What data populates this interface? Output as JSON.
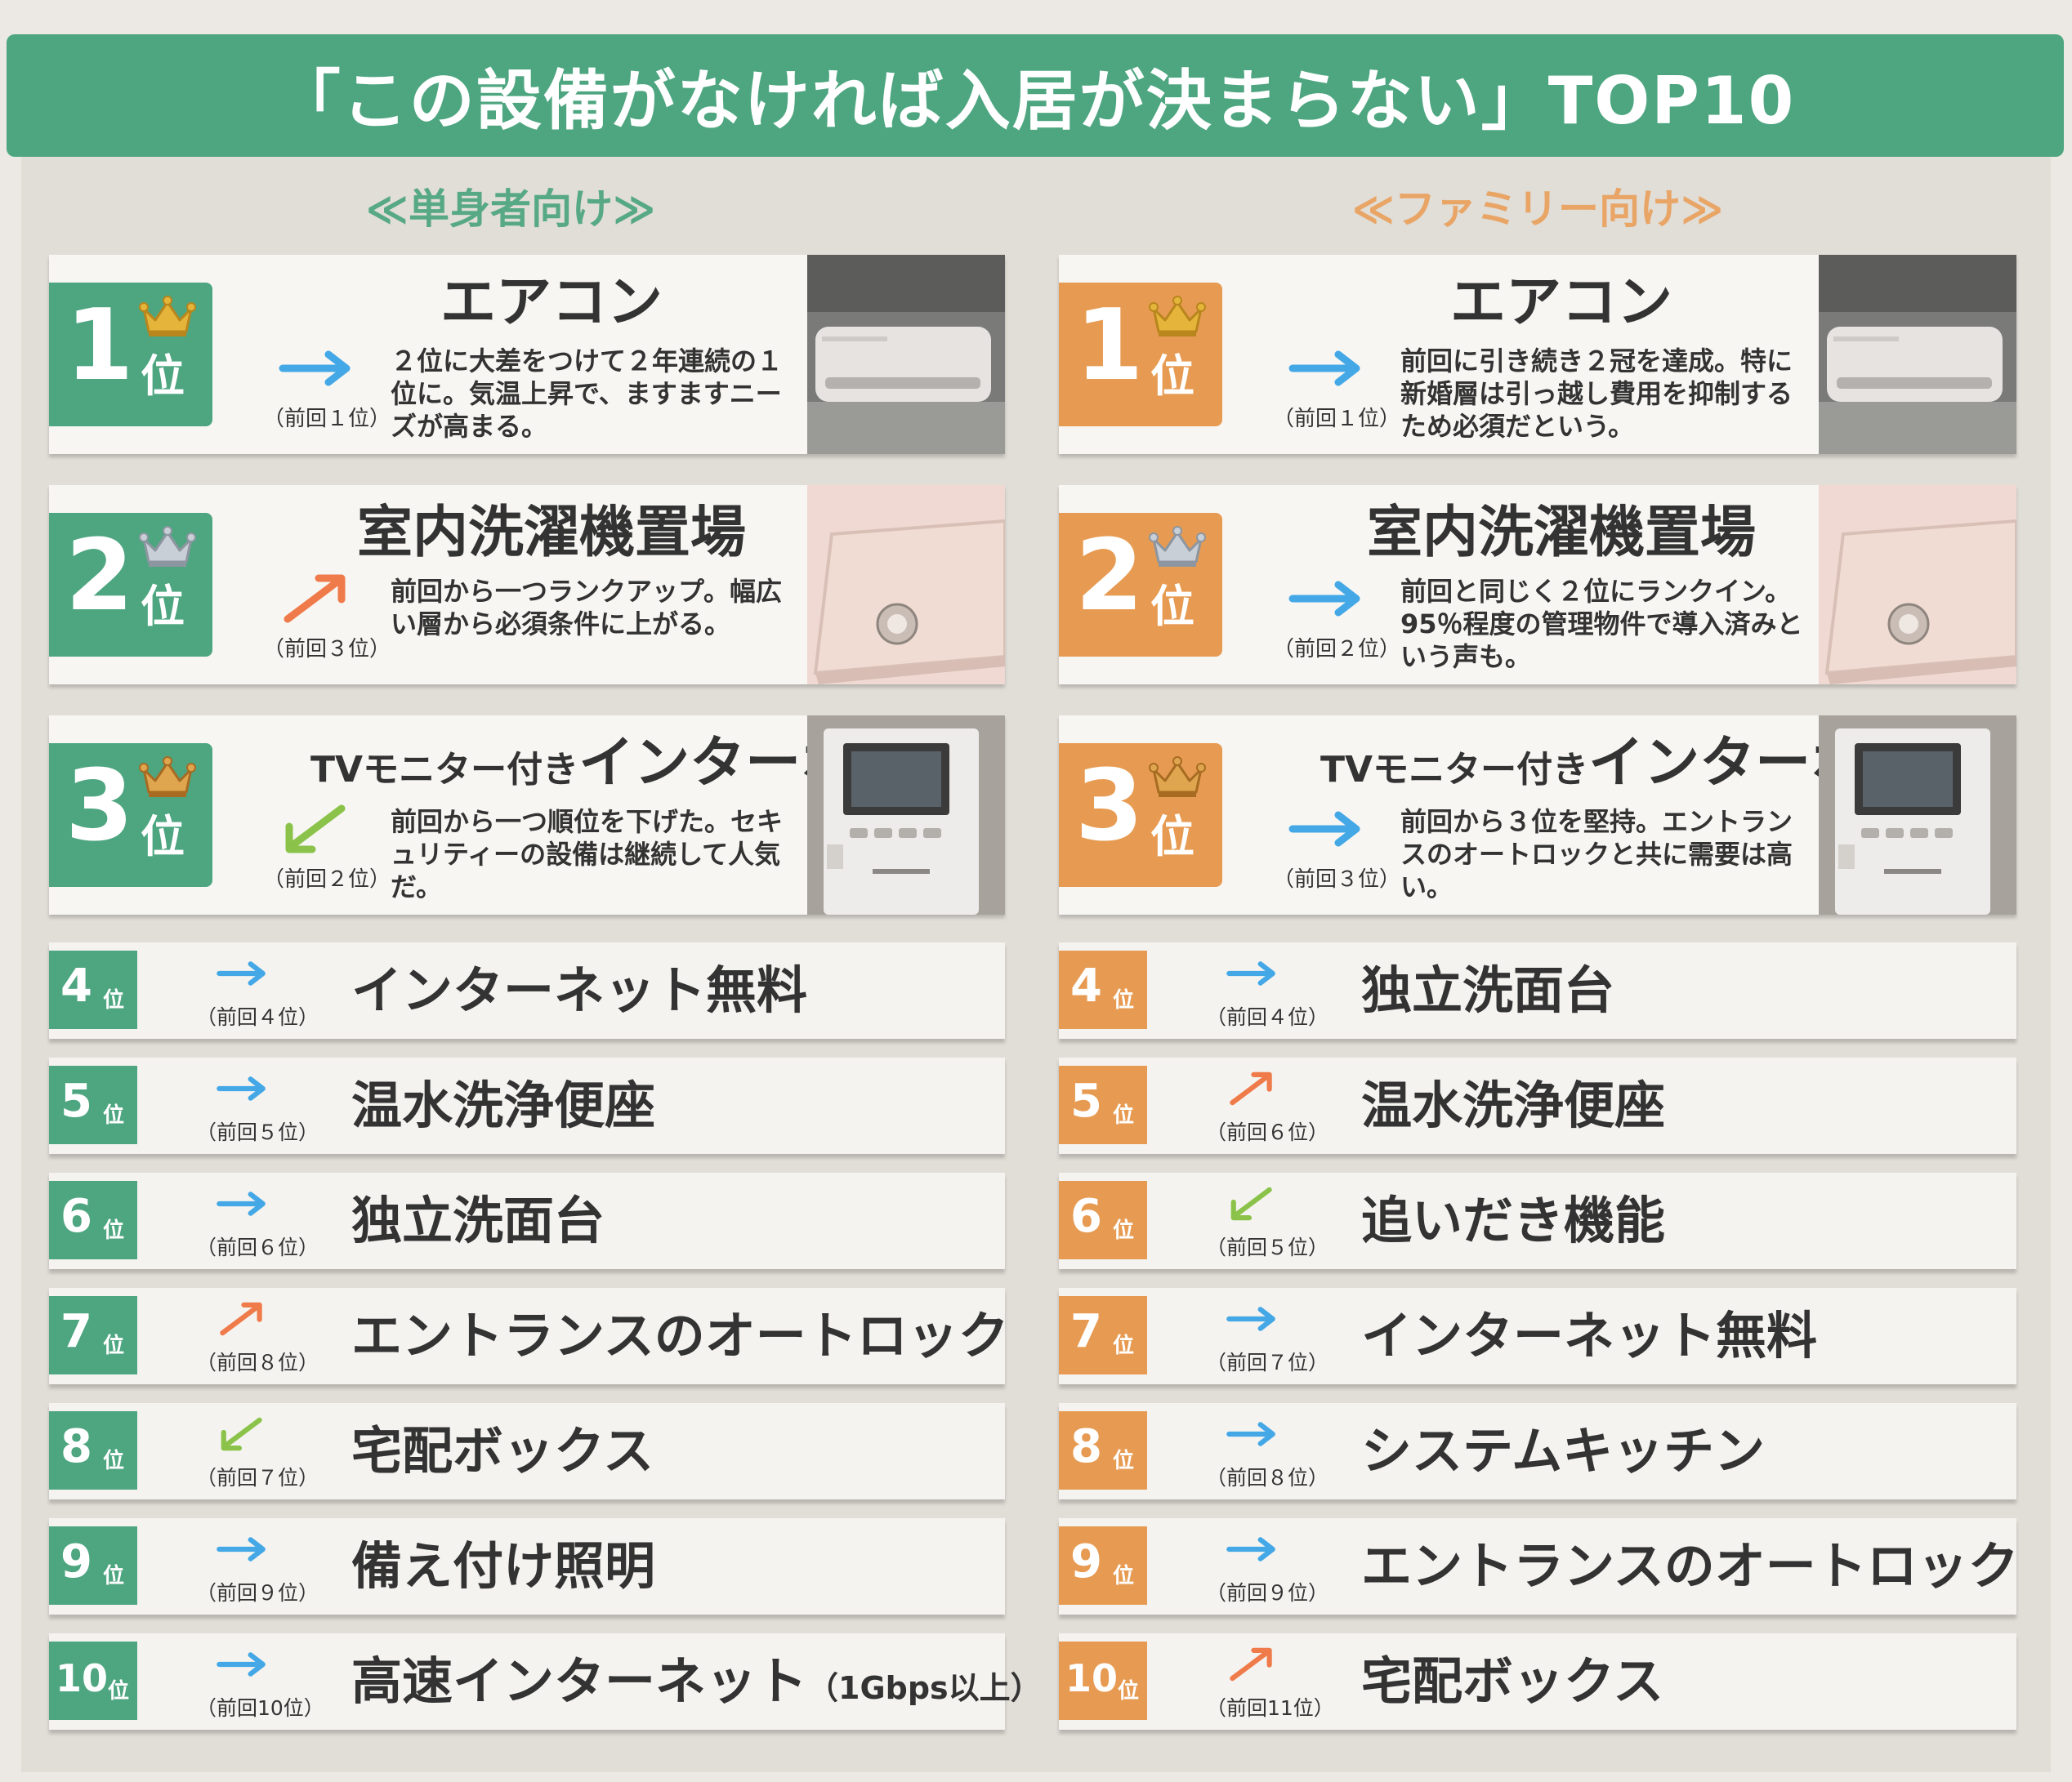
{
  "title": "「この設備がなければ入居が決まらない」TOP10",
  "rank_unit": "位",
  "colors": {
    "green": "#4ea681",
    "orange": "#e79b52",
    "up": "#f07b4a",
    "down": "#8bc34a",
    "same": "#45a8e6"
  },
  "columns": [
    {
      "heading": "≪単身者向け≫",
      "theme": "green",
      "top3": [
        {
          "rank": "1",
          "crown": "gold",
          "trend": "same",
          "prev": "（前回１位）",
          "name": "エアコン",
          "name_prefix": "",
          "desc": "２位に大差をつけて２年連続の１位に。気温上昇で、ますますニーズが高まる。",
          "photo": "air-conditioner"
        },
        {
          "rank": "2",
          "crown": "silver",
          "trend": "up",
          "prev": "（前回３位）",
          "name": "室内洗濯機置場",
          "name_prefix": "",
          "desc": "前回から一つランクアップ。幅広い層から必須条件に上がる。",
          "photo": "washing-machine-pan"
        },
        {
          "rank": "3",
          "crown": "bronze",
          "trend": "down",
          "prev": "（前回２位）",
          "name": "インターホン",
          "name_prefix": "TVモニター付き",
          "desc": "前回から一つ順位を下げた。セキュリティーの設備は継続して人気だ。",
          "photo": "video-intercom"
        }
      ],
      "rows": [
        {
          "rank": "4",
          "trend": "same",
          "prev": "（前回４位）",
          "name": "インターネット無料",
          "note": ""
        },
        {
          "rank": "5",
          "trend": "same",
          "prev": "（前回５位）",
          "name": "温水洗浄便座",
          "note": ""
        },
        {
          "rank": "6",
          "trend": "same",
          "prev": "（前回６位）",
          "name": "独立洗面台",
          "note": ""
        },
        {
          "rank": "7",
          "trend": "up",
          "prev": "（前回８位）",
          "name": "エントランスのオートロック",
          "note": ""
        },
        {
          "rank": "8",
          "trend": "down",
          "prev": "（前回７位）",
          "name": "宅配ボックス",
          "note": ""
        },
        {
          "rank": "9",
          "trend": "same",
          "prev": "（前回９位）",
          "name": "備え付け照明",
          "note": ""
        },
        {
          "rank": "10",
          "trend": "same",
          "prev": "（前回10位）",
          "name": "高速インターネット",
          "note": "（1Gbps以上）"
        }
      ]
    },
    {
      "heading": "≪ファミリー向け≫",
      "theme": "orange",
      "top3": [
        {
          "rank": "1",
          "crown": "gold",
          "trend": "same",
          "prev": "（前回１位）",
          "name": "エアコン",
          "name_prefix": "",
          "desc": "前回に引き続き２冠を達成。特に新婚層は引っ越し費用を抑制するため必須だという。",
          "photo": "air-conditioner"
        },
        {
          "rank": "2",
          "crown": "silver",
          "trend": "same",
          "prev": "（前回２位）",
          "name": "室内洗濯機置場",
          "name_prefix": "",
          "desc": "前回と同じく２位にランクイン。95％程度の管理物件で導入済みという声も。",
          "photo": "washing-machine-pan"
        },
        {
          "rank": "3",
          "crown": "bronze",
          "trend": "same",
          "prev": "（前回３位）",
          "name": "インターホン",
          "name_prefix": "TVモニター付き",
          "desc": "前回から３位を堅持。エントランスのオートロックと共に需要は高い。",
          "photo": "video-intercom"
        }
      ],
      "rows": [
        {
          "rank": "4",
          "trend": "same",
          "prev": "（前回４位）",
          "name": "独立洗面台",
          "note": ""
        },
        {
          "rank": "5",
          "trend": "up",
          "prev": "（前回６位）",
          "name": "温水洗浄便座",
          "note": ""
        },
        {
          "rank": "6",
          "trend": "down",
          "prev": "（前回５位）",
          "name": "追いだき機能",
          "note": ""
        },
        {
          "rank": "7",
          "trend": "same",
          "prev": "（前回７位）",
          "name": "インターネット無料",
          "note": ""
        },
        {
          "rank": "8",
          "trend": "same",
          "prev": "（前回８位）",
          "name": "システムキッチン",
          "note": ""
        },
        {
          "rank": "9",
          "trend": "same",
          "prev": "（前回９位）",
          "name": "エントランスのオートロック",
          "note": ""
        },
        {
          "rank": "10",
          "trend": "up",
          "prev": "（前回11位）",
          "name": "宅配ボックス",
          "note": ""
        }
      ]
    }
  ]
}
